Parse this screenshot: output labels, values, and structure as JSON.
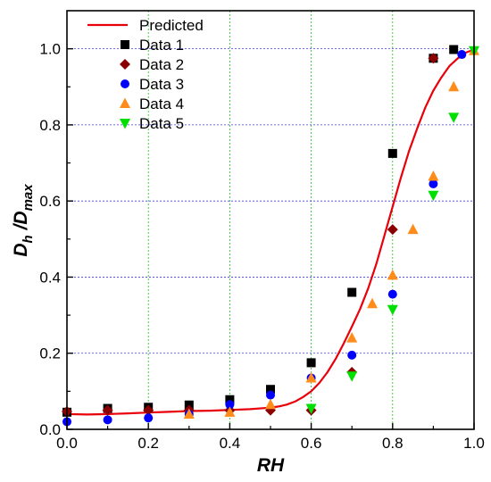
{
  "chart_data": {
    "type": "scatter",
    "title": "",
    "xlabel": "RH",
    "ylabel_main": "D",
    "ylabel_sub1": "h",
    "ylabel_sep": " /",
    "ylabel_main2": "D",
    "ylabel_sub2": "max",
    "xlim": [
      0.0,
      1.0
    ],
    "ylim": [
      0.0,
      1.1
    ],
    "xticks": [
      "0.0",
      "0.2",
      "0.4",
      "0.6",
      "0.8",
      "1.0"
    ],
    "yticks": [
      "0.0",
      "0.2",
      "0.4",
      "0.6",
      "0.8",
      "1.0"
    ],
    "grid": true,
    "legend_position": "top-left",
    "predicted": {
      "name": "Predicted",
      "color": "#e8000b",
      "x": [
        0.0,
        0.05,
        0.1,
        0.15,
        0.2,
        0.25,
        0.3,
        0.35,
        0.4,
        0.45,
        0.5,
        0.52,
        0.54,
        0.56,
        0.58,
        0.6,
        0.62,
        0.64,
        0.66,
        0.68,
        0.7,
        0.72,
        0.74,
        0.76,
        0.78,
        0.8,
        0.82,
        0.84,
        0.86,
        0.88,
        0.9,
        0.92,
        0.94,
        0.96,
        0.98,
        1.0
      ],
      "y": [
        0.04,
        0.039,
        0.04,
        0.042,
        0.044,
        0.046,
        0.048,
        0.049,
        0.051,
        0.053,
        0.057,
        0.06,
        0.065,
        0.073,
        0.085,
        0.1,
        0.122,
        0.15,
        0.185,
        0.226,
        0.27,
        0.316,
        0.37,
        0.435,
        0.51,
        0.585,
        0.66,
        0.73,
        0.79,
        0.845,
        0.89,
        0.925,
        0.955,
        0.975,
        0.99,
        0.998
      ]
    },
    "series": [
      {
        "name": "Data 1",
        "marker": "square",
        "color": "#000000",
        "x": [
          0.0,
          0.1,
          0.2,
          0.3,
          0.4,
          0.5,
          0.6,
          0.7,
          0.8,
          0.9,
          0.95
        ],
        "y": [
          0.045,
          0.055,
          0.058,
          0.064,
          0.078,
          0.105,
          0.175,
          0.36,
          0.725,
          0.975,
          0.998
        ]
      },
      {
        "name": "Data 2",
        "marker": "diamond",
        "color": "#8b0000",
        "x": [
          0.0,
          0.1,
          0.2,
          0.3,
          0.4,
          0.5,
          0.6,
          0.7,
          0.8,
          0.9
        ],
        "y": [
          0.047,
          0.05,
          0.05,
          0.05,
          0.05,
          0.05,
          0.05,
          0.15,
          0.525,
          0.975
        ]
      },
      {
        "name": "Data 3",
        "marker": "circle",
        "color": "#0000ff",
        "x": [
          0.0,
          0.1,
          0.2,
          0.3,
          0.4,
          0.5,
          0.6,
          0.7,
          0.8,
          0.9,
          0.97
        ],
        "y": [
          0.02,
          0.025,
          0.03,
          0.04,
          0.065,
          0.09,
          0.135,
          0.195,
          0.355,
          0.645,
          0.985
        ]
      },
      {
        "name": "Data 4",
        "marker": "triangle-up",
        "color": "#ff8c1a",
        "x": [
          0.3,
          0.4,
          0.5,
          0.6,
          0.7,
          0.75,
          0.8,
          0.85,
          0.9,
          0.95,
          1.0
        ],
        "y": [
          0.04,
          0.045,
          0.065,
          0.135,
          0.24,
          0.33,
          0.405,
          0.525,
          0.665,
          0.9,
          0.995
        ]
      },
      {
        "name": "Data 5",
        "marker": "triangle-down",
        "color": "#00e000",
        "x": [
          0.6,
          0.7,
          0.8,
          0.9,
          0.95,
          1.0
        ],
        "y": [
          0.055,
          0.14,
          0.315,
          0.615,
          0.82,
          0.995
        ]
      }
    ]
  }
}
